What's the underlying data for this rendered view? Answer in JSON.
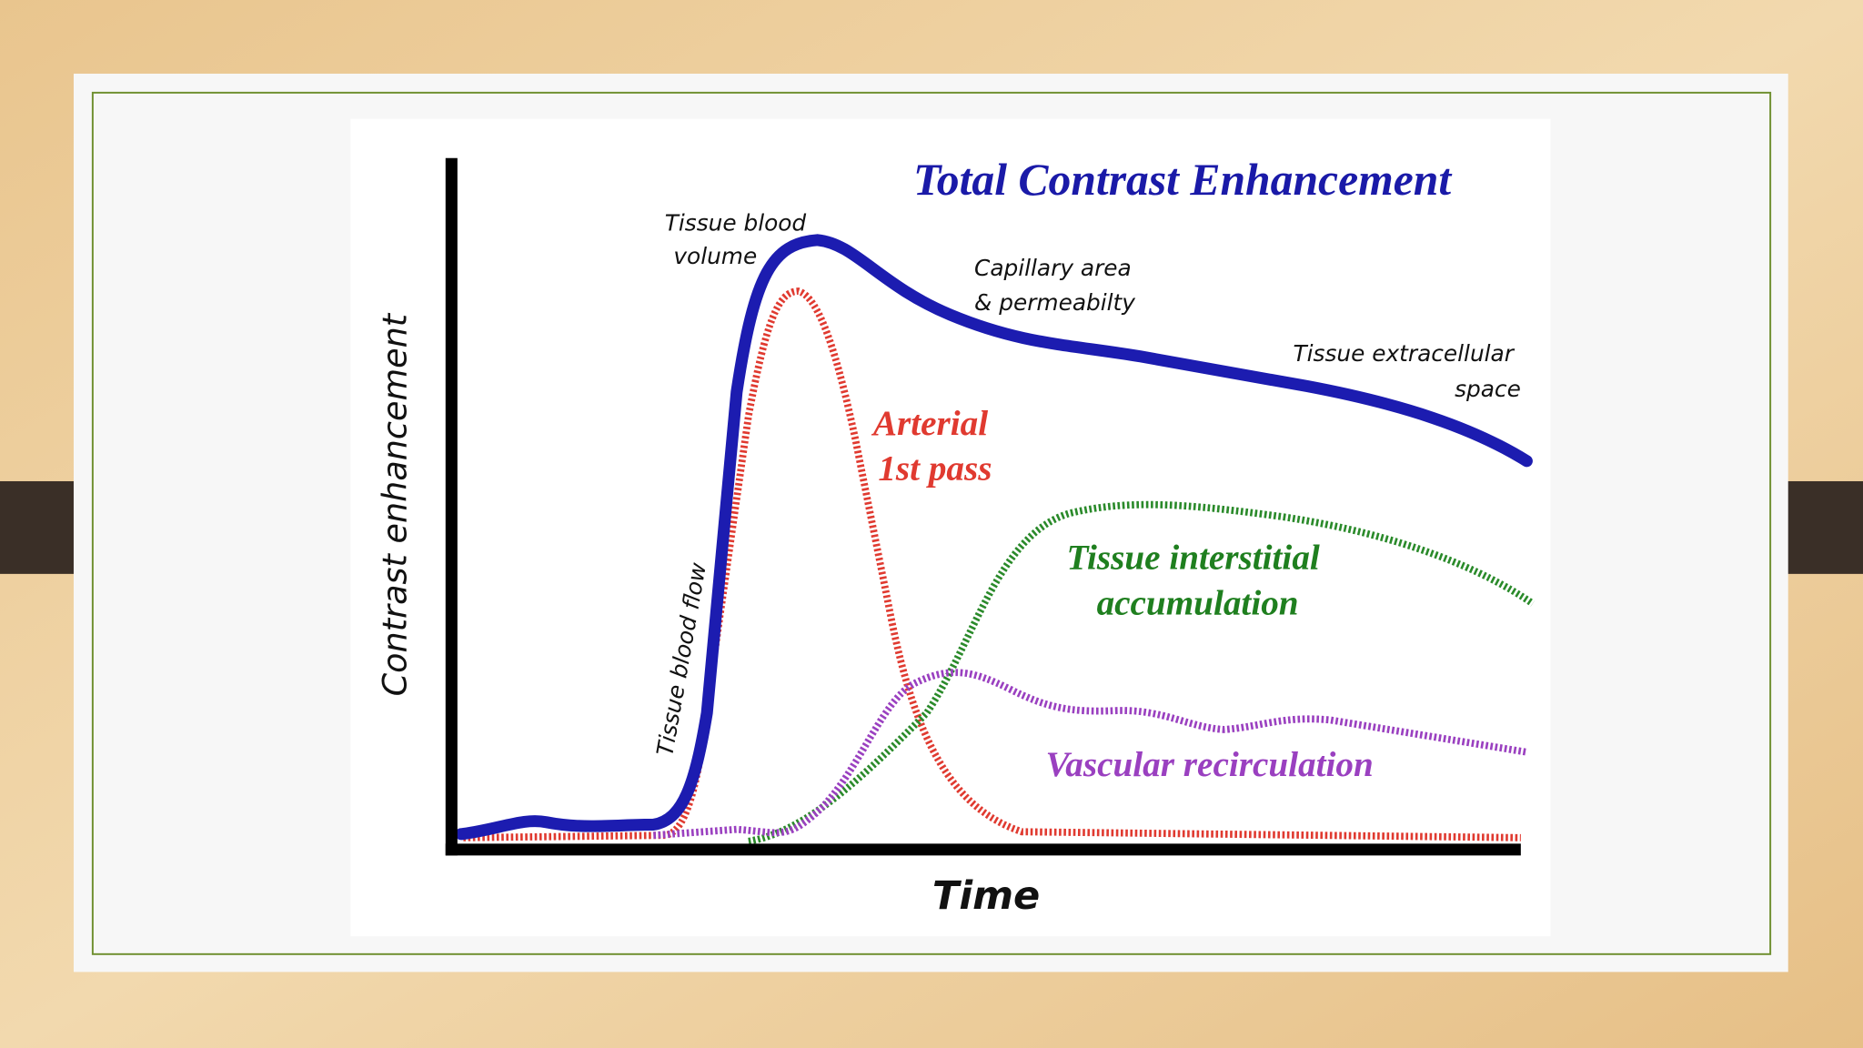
{
  "title": "Total Contrast Enhancement",
  "y_axis_label": "Contrast enhancement",
  "x_axis_label": "Time",
  "annotations": [
    {
      "lines": [
        "Tissue blood",
        "volume"
      ]
    },
    {
      "lines": [
        "Capillary area",
        "& permeabilty"
      ]
    },
    {
      "lines": [
        "Tissue extracellular",
        "space"
      ]
    },
    {
      "lines": [
        "Arterial",
        "1st pass"
      ]
    },
    {
      "lines": [
        "Tissue interstitial",
        "accumulation"
      ]
    },
    {
      "lines": [
        "Vascular recirculation"
      ]
    },
    {
      "lines": [
        "Tissue blood flow"
      ]
    }
  ]
}
